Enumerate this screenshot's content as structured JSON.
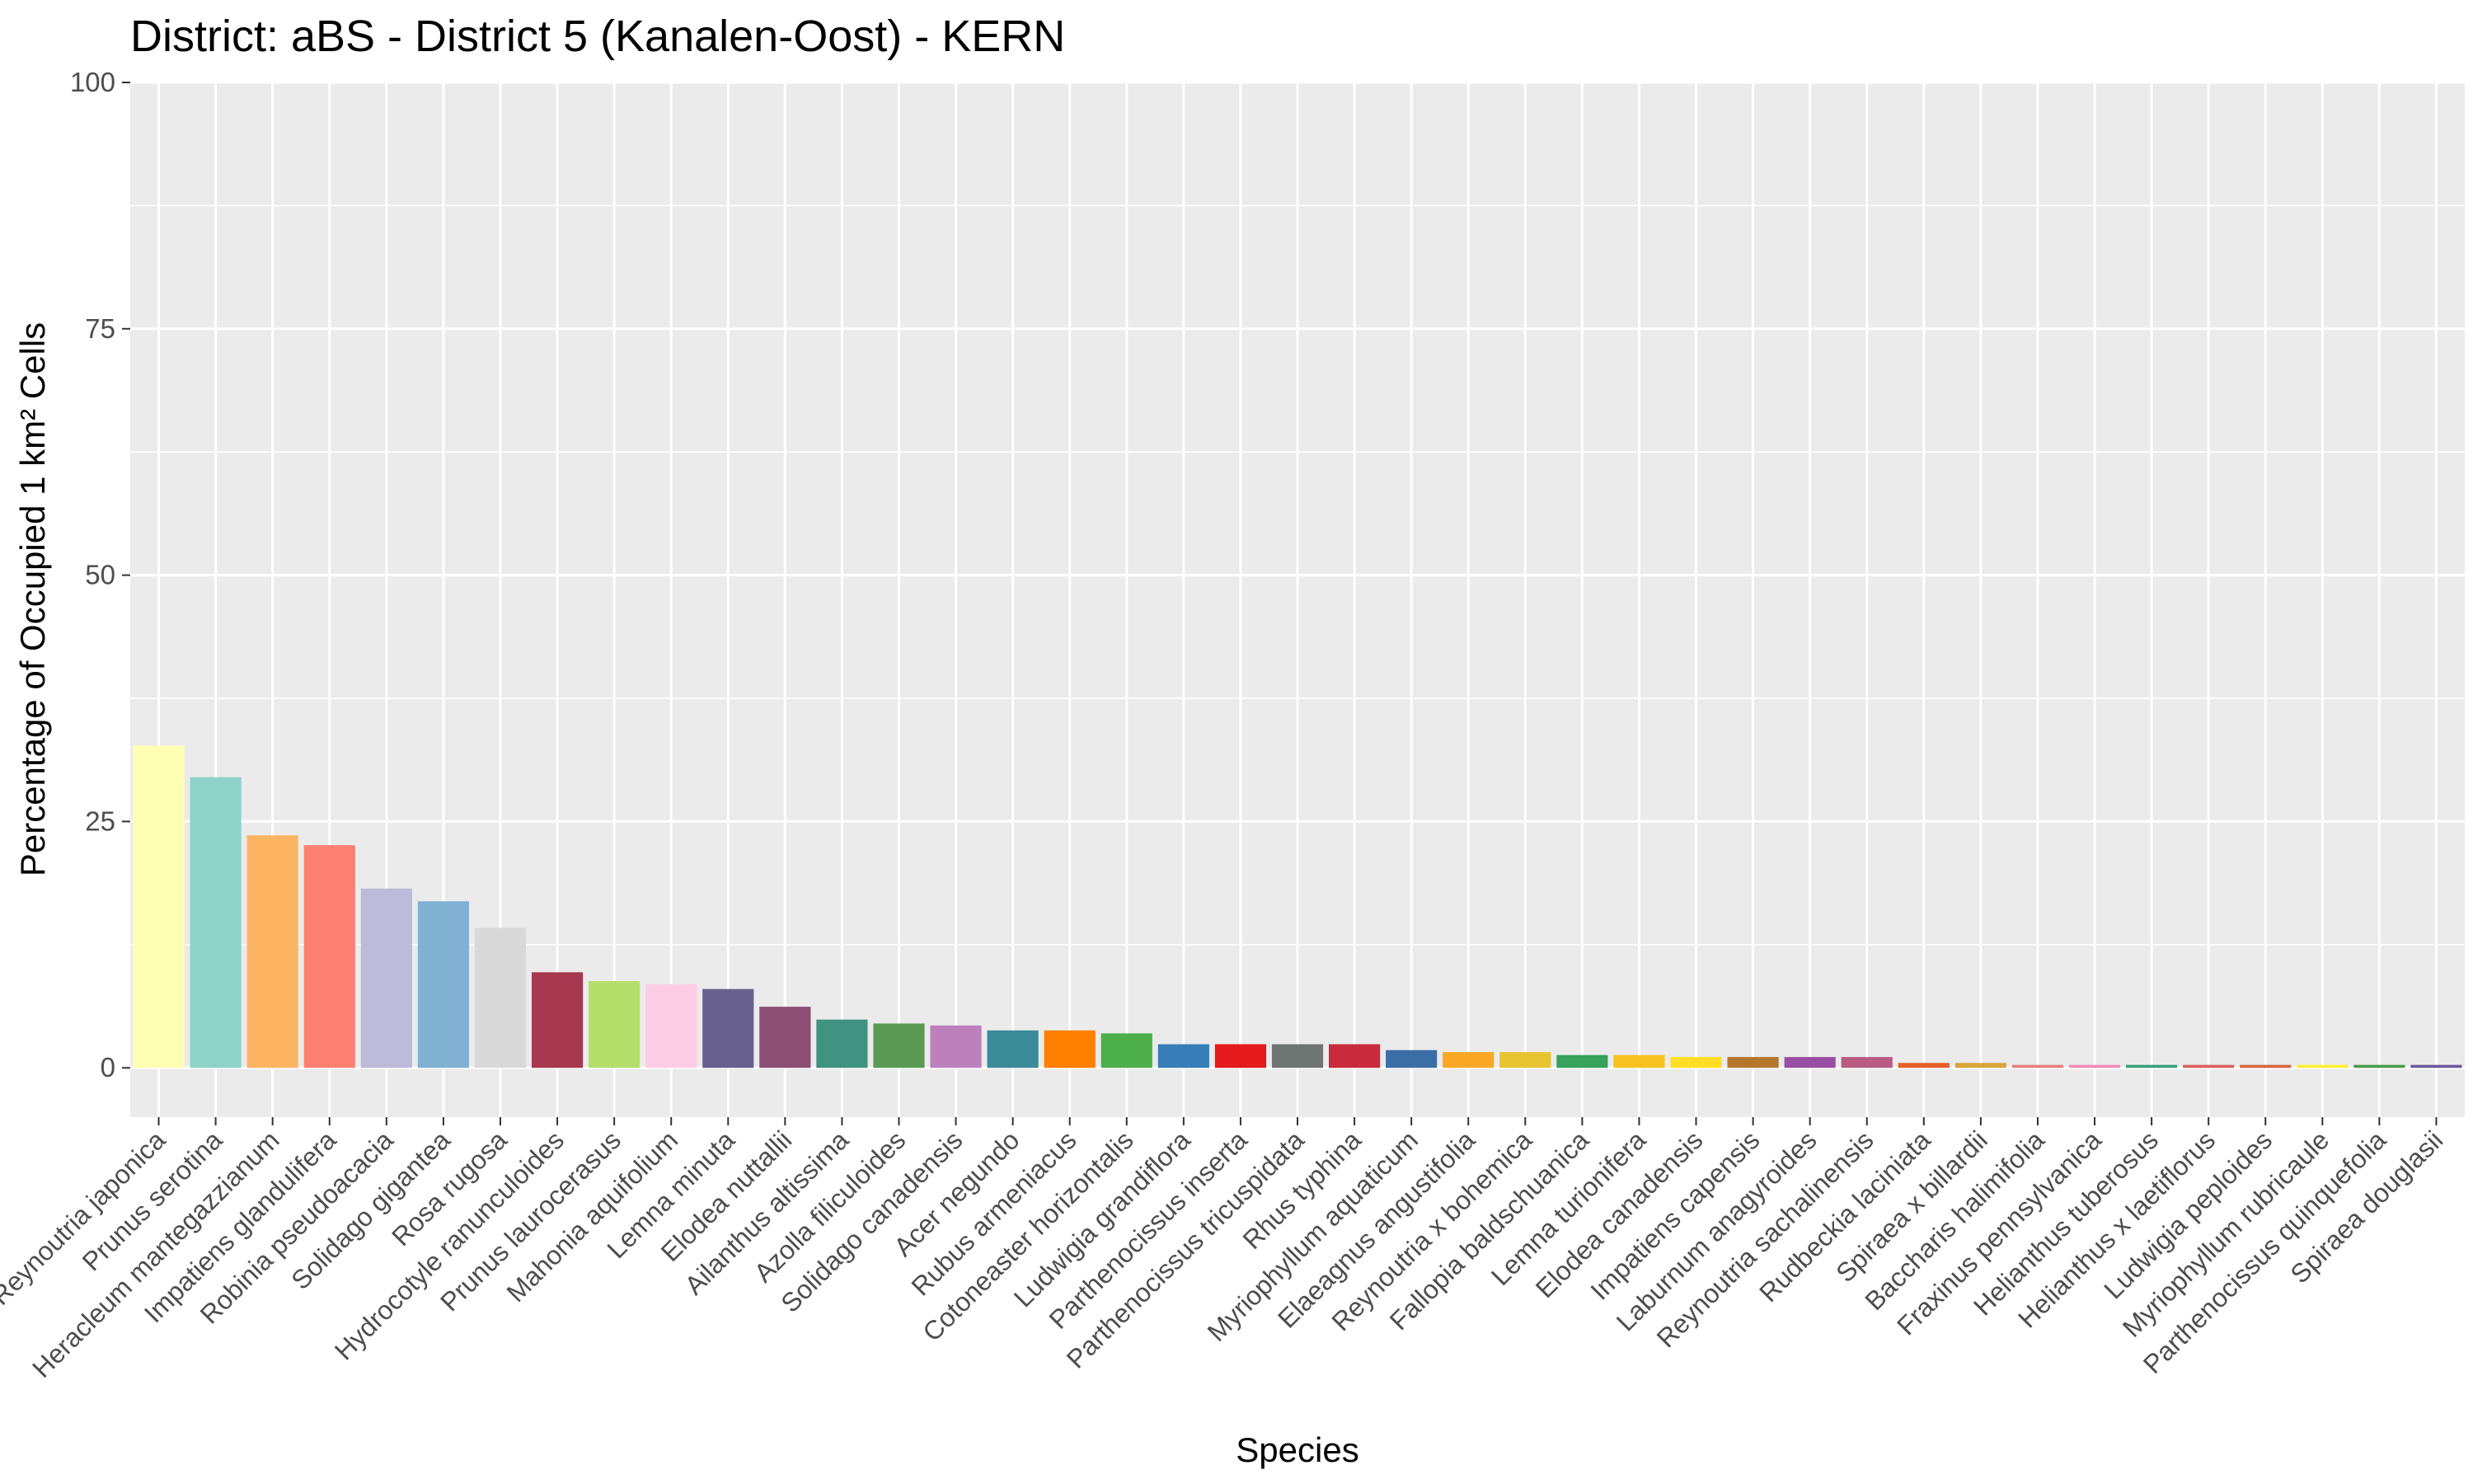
{
  "chart_data": {
    "type": "bar",
    "title": "District: aBS - District 5 (Kanalen-Oost)  - KERN",
    "xlabel": "Species",
    "ylabel": "Percentage of Occupied 1 km² Cells",
    "ylim": [
      -5,
      100
    ],
    "yticks": [
      0,
      25,
      50,
      75,
      100
    ],
    "grid": true,
    "categories": [
      "Reynoutria japonica",
      "Prunus serotina",
      "Heracleum mantegazzianum",
      "Impatiens glandulifera",
      "Robinia pseudoacacia",
      "Solidago gigantea",
      "Rosa rugosa",
      "Hydrocotyle ranunculoides",
      "Prunus laurocerasus",
      "Mahonia aquifolium",
      "Lemna minuta",
      "Elodea nuttallii",
      "Ailanthus altissima",
      "Azolla filiculoides",
      "Solidago canadensis",
      "Acer negundo",
      "Rubus armeniacus",
      "Cotoneaster horizontalis",
      "Ludwigia grandiflora",
      "Parthenocissus inserta",
      "Parthenocissus tricuspidata",
      "Rhus typhina",
      "Myriophyllum aquaticum",
      "Elaeagnus angustifolia",
      "Reynoutria x bohemica",
      "Fallopia baldschuanica",
      "Lemna turionifera",
      "Elodea canadensis",
      "Impatiens capensis",
      "Laburnum anagyroides",
      "Reynoutria sachalinensis",
      "Rudbeckia laciniata",
      "Spiraea x billardii",
      "Baccharis halimifolia",
      "Fraxinus pennsylvanica",
      "Helianthus tuberosus",
      "Helianthus x laetiflorus",
      "Ludwigia peploides",
      "Myriophyllum rubricaule",
      "Parthenocissus quinquefolia",
      "Spiraea douglasii"
    ],
    "values": [
      32.7,
      29.5,
      23.6,
      22.6,
      18.2,
      16.9,
      14.2,
      9.7,
      8.8,
      8.5,
      8.0,
      6.2,
      4.9,
      4.5,
      4.3,
      3.8,
      3.8,
      3.5,
      2.4,
      2.4,
      2.4,
      2.4,
      1.8,
      1.6,
      1.6,
      1.3,
      1.3,
      1.1,
      1.1,
      1.1,
      1.1,
      0.5,
      0.5,
      0.3,
      0.3,
      0.3,
      0.3,
      0.3,
      0.3,
      0.3,
      0.3
    ],
    "colors": [
      "#FFFFB3",
      "#8DD3C7",
      "#FDB462",
      "#FB8072",
      "#BEBADA",
      "#80B1D3",
      "#D9D9D9",
      "#A6384F",
      "#B3DE69",
      "#FCCDE5",
      "#67608E",
      "#8A4F73",
      "#3F9380",
      "#5A9A54",
      "#BC80BD",
      "#3B8B98",
      "#FF7F00",
      "#4DAF4A",
      "#377EB8",
      "#E41A1C",
      "#6E7573",
      "#C92A3C",
      "#3B6EA5",
      "#F9A825",
      "#E8C430",
      "#36A25C",
      "#F7C21F",
      "#FFDE25",
      "#B5772D",
      "#984EA3",
      "#B85C82",
      "#E6602A",
      "#D9A53A",
      "#E87C7C",
      "#F28CB5",
      "#3AA07A",
      "#D95F5F",
      "#D9653B",
      "#FFEE33",
      "#4A9A4A",
      "#6A5A9A"
    ]
  }
}
